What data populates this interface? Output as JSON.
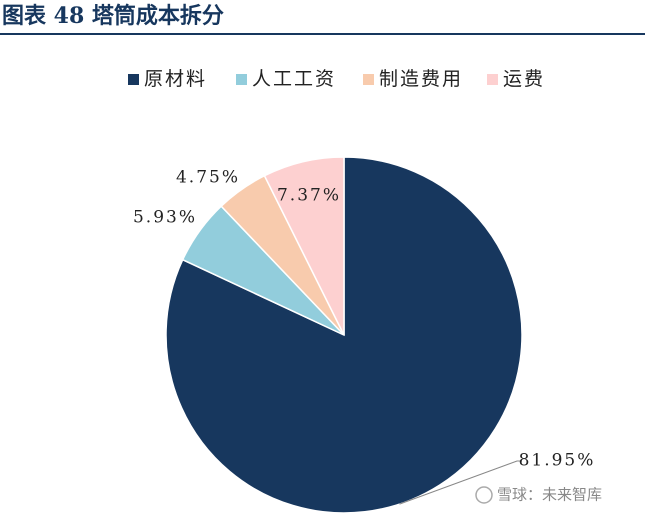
{
  "chart_data": {
    "type": "pie",
    "title": "图表 48 塔筒成本拆分",
    "categories": [
      "原材料",
      "人工工资",
      "制造费用",
      "运费"
    ],
    "values": [
      81.95,
      5.93,
      4.75,
      7.37
    ],
    "value_labels": [
      "81.95%",
      "5.93%",
      "4.75%",
      "7.37%"
    ],
    "colors": [
      "#17375e",
      "#92cddc",
      "#f8cbad",
      "#fdd0d0"
    ],
    "legend": "top",
    "watermark": "雪球：未来智库"
  }
}
